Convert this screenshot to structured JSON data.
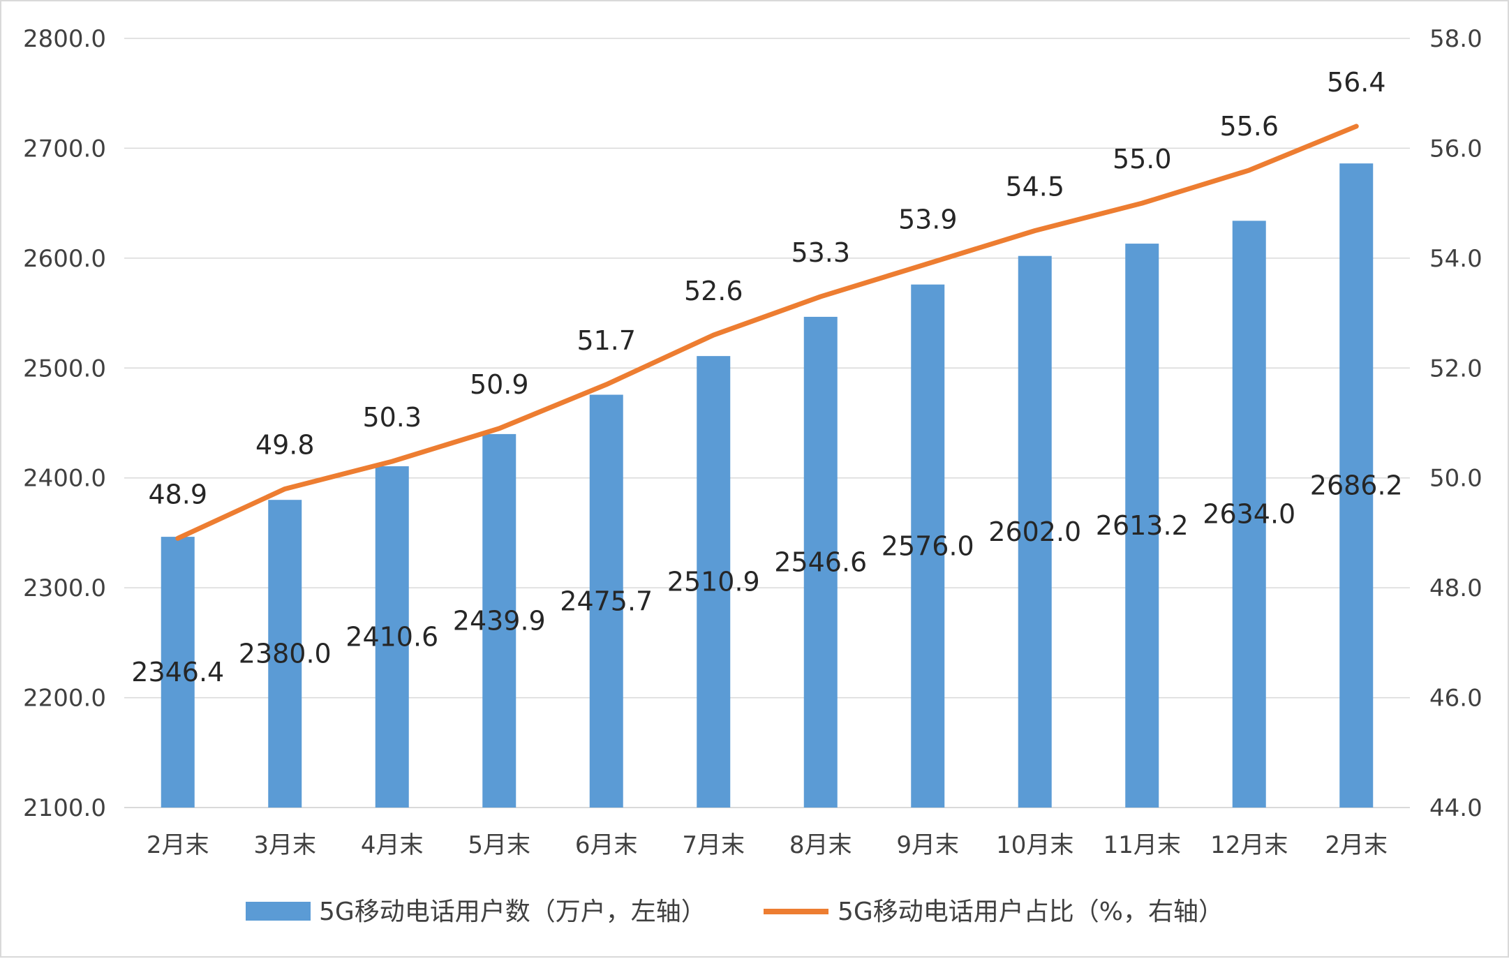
{
  "chart_data": {
    "type": "bar",
    "categories": [
      "2月末",
      "3月末",
      "4月末",
      "5月末",
      "6月末",
      "7月末",
      "8月末",
      "9月末",
      "10月末",
      "11月末",
      "12月末",
      "2月末"
    ],
    "series": [
      {
        "name": "5G移动电话用户数（万户，左轴）",
        "type": "bar",
        "axis": "left",
        "color": "#5b9bd5",
        "values": [
          2346.4,
          2380.0,
          2410.6,
          2439.9,
          2475.7,
          2510.9,
          2546.6,
          2576.0,
          2602.0,
          2613.2,
          2634.0,
          2686.2
        ],
        "labels": [
          "2346.4",
          "2380.0",
          "2410.6",
          "2439.9",
          "2475.7",
          "2510.9",
          "2546.6",
          "2576.0",
          "2602.0",
          "2613.2",
          "2634.0",
          "2686.2"
        ]
      },
      {
        "name": "5G移动电话用户占比（%，右轴）",
        "type": "line",
        "axis": "right",
        "color": "#ed7d31",
        "values": [
          48.9,
          49.8,
          50.3,
          50.9,
          51.7,
          52.6,
          53.3,
          53.9,
          54.5,
          55.0,
          55.6,
          56.4
        ],
        "labels": [
          "48.9",
          "49.8",
          "50.3",
          "50.9",
          "51.7",
          "52.6",
          "53.3",
          "53.9",
          "54.5",
          "55.0",
          "55.6",
          "56.4"
        ]
      }
    ],
    "y_left": {
      "range": [
        2100,
        2800
      ],
      "ticks": [
        2100,
        2200,
        2300,
        2400,
        2500,
        2600,
        2700,
        2800
      ],
      "tick_labels": [
        "2100.0",
        "2200.0",
        "2300.0",
        "2400.0",
        "2500.0",
        "2600.0",
        "2700.0",
        "2800.0"
      ]
    },
    "y_right": {
      "range": [
        44,
        58
      ],
      "ticks": [
        44,
        46,
        48,
        50,
        52,
        54,
        56,
        58
      ],
      "tick_labels": [
        "44.0",
        "46.0",
        "48.0",
        "50.0",
        "52.0",
        "54.0",
        "56.0",
        "58.0"
      ]
    },
    "grid": true,
    "legend": "bottom",
    "gridline_color": "#d9d9d9"
  }
}
